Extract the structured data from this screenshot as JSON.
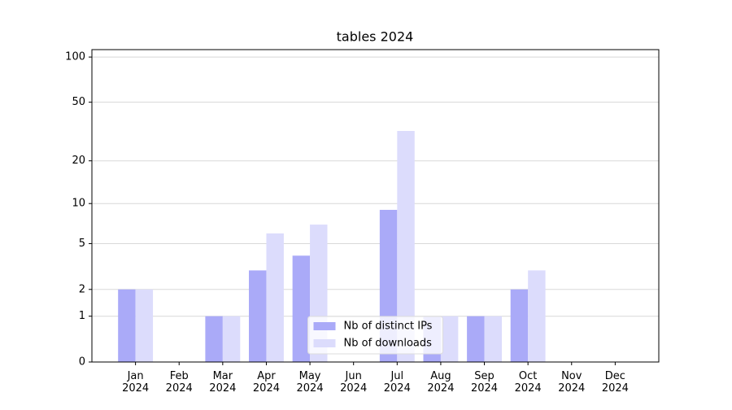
{
  "chart_data": {
    "type": "bar",
    "title": "tables 2024",
    "categories": [
      "Jan 2024",
      "Feb 2024",
      "Mar 2024",
      "Apr 2024",
      "May 2024",
      "Jun 2024",
      "Jul 2024",
      "Aug 2024",
      "Sep 2024",
      "Oct 2024",
      "Nov 2024",
      "Dec 2024"
    ],
    "series": [
      {
        "name": "Nb of distinct IPs",
        "color": "#aaaaf8",
        "values": [
          2,
          0,
          1,
          3,
          4,
          0,
          9,
          1,
          1,
          2,
          0,
          0
        ]
      },
      {
        "name": "Nb of downloads",
        "color": "#dcdcfc",
        "values": [
          2,
          0,
          1,
          6,
          7,
          0,
          32,
          1,
          1,
          3,
          0,
          0
        ]
      }
    ],
    "yscale": "log1p",
    "ylim": [
      0,
      112
    ],
    "yticks": [
      0,
      1,
      2,
      5,
      10,
      20,
      50,
      100
    ],
    "grid": true,
    "legend": "lower center"
  }
}
